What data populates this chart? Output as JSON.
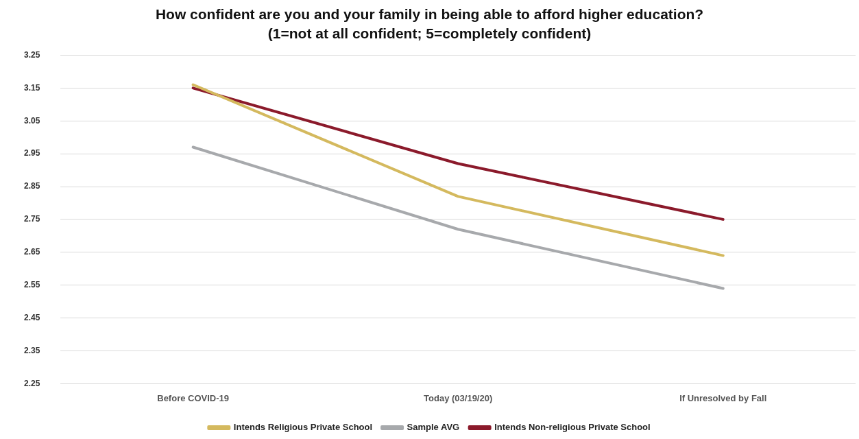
{
  "chart_data": {
    "type": "line",
    "title": "How confident are you and your family in being able to afford higher education?",
    "subtitle": "(1=not at all confident; 5=completely confident)",
    "categories": [
      "Before COVID-19",
      "Today (03/19/20)",
      "If Unresolved by Fall"
    ],
    "series": [
      {
        "name": "Intends Religious Private School",
        "color": "#d4b95e",
        "values": [
          3.16,
          2.82,
          2.64
        ]
      },
      {
        "name": "Sample AVG",
        "color": "#a7a9ac",
        "values": [
          2.97,
          2.72,
          2.54
        ]
      },
      {
        "name": "Intends Non-religious Private School",
        "color": "#8b1a2b",
        "values": [
          3.15,
          2.92,
          2.75
        ]
      }
    ],
    "ylim": [
      2.25,
      3.25
    ],
    "yticks": [
      {
        "value": 2.25,
        "label": "2.25"
      },
      {
        "value": 2.35,
        "label": "2.35"
      },
      {
        "value": 2.45,
        "label": "2.45"
      },
      {
        "value": 2.55,
        "label": "2.55"
      },
      {
        "value": 2.65,
        "label": "2.65"
      },
      {
        "value": 2.75,
        "label": "2.75"
      },
      {
        "value": 2.85,
        "label": "2.85"
      },
      {
        "value": 2.95,
        "label": "2.95"
      },
      {
        "value": 3.05,
        "label": "3.05"
      },
      {
        "value": 3.15,
        "label": "3.15"
      },
      {
        "value": 3.25,
        "label": "3.25"
      }
    ],
    "grid": "y",
    "legend": "bottom",
    "marker": "none",
    "line_style": "solid"
  }
}
